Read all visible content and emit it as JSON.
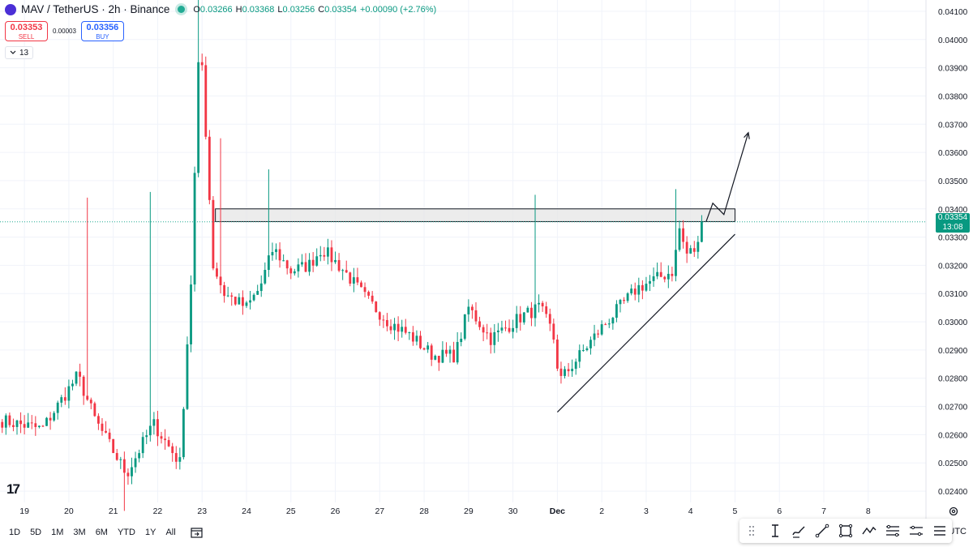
{
  "header": {
    "symbol": "MAV / TetherUS · 2h · Binance",
    "ohlc": [
      {
        "k": "O",
        "v": "0.03266"
      },
      {
        "k": "H",
        "v": "0.03368"
      },
      {
        "k": "L",
        "v": "0.03256"
      },
      {
        "k": "C",
        "v": "0.03354"
      },
      {
        "k": "",
        "v": "+0.00090 (+2.76%)"
      }
    ]
  },
  "trade": {
    "sell_price": "0.03353",
    "sell_label": "SELL",
    "spread": "0.00003",
    "buy_price": "0.03356",
    "buy_label": "BUY"
  },
  "indicators": {
    "count": "13"
  },
  "price_tag": {
    "price": "0.03354",
    "countdown": "13:08"
  },
  "colors": {
    "up": "#089981",
    "down": "#f23645",
    "live_line": "#22ab94",
    "zone_fill": "#e6e6e6"
  },
  "time_axis": [
    {
      "label": "19",
      "day": 19
    },
    {
      "label": "20",
      "day": 20
    },
    {
      "label": "21",
      "day": 21
    },
    {
      "label": "22",
      "day": 22
    },
    {
      "label": "23",
      "day": 23
    },
    {
      "label": "24",
      "day": 24
    },
    {
      "label": "25",
      "day": 25
    },
    {
      "label": "26",
      "day": 26
    },
    {
      "label": "27",
      "day": 27
    },
    {
      "label": "28",
      "day": 28
    },
    {
      "label": "29",
      "day": 29
    },
    {
      "label": "30",
      "day": 30
    },
    {
      "label": "Dec",
      "day": 31
    },
    {
      "label": "2",
      "day": 32
    },
    {
      "label": "3",
      "day": 33
    },
    {
      "label": "4",
      "day": 34
    },
    {
      "label": "5",
      "day": 35
    },
    {
      "label": "6",
      "day": 36
    },
    {
      "label": "7",
      "day": 37
    },
    {
      "label": "8",
      "day": 38
    }
  ],
  "timeframes": [
    "1D",
    "5D",
    "1M",
    "3M",
    "6M",
    "YTD",
    "1Y",
    "All"
  ],
  "bottom": {
    "timezone": "UTC"
  },
  "drawing_tools": [
    "move-handle-icon",
    "text-cursor-icon",
    "brush-icon",
    "trend-line-icon",
    "rectangle-icon",
    "path-icon",
    "fib-retracement-icon",
    "measure-icon",
    "menu-icon"
  ],
  "chart_data": {
    "type": "candlestick",
    "symbol": "MAV / TetherUS",
    "interval": "2h",
    "exchange": "Binance",
    "y_ticks": [
      0.041,
      0.04,
      0.039,
      0.038,
      0.037,
      0.036,
      0.035,
      0.034,
      0.033,
      0.032,
      0.031,
      0.03,
      0.029,
      0.028,
      0.027,
      0.026,
      0.025,
      0.024
    ],
    "y_tick_labels": [
      "0.04100",
      "0.04000",
      "0.03900",
      "0.03800",
      "0.03700",
      "0.03600",
      "0.03500",
      "0.03400",
      "0.03300",
      "0.03200",
      "0.03100",
      "0.03000",
      "0.02900",
      "0.02800",
      "0.02700",
      "0.02600",
      "0.02500",
      "0.02400"
    ],
    "ylim": [
      0.0236,
      0.0414
    ],
    "xlim": [
      18.45,
      39.3
    ],
    "current_price": 0.03354,
    "key_points": [
      {
        "day": 18.5,
        "close": 0.0265
      },
      {
        "day": 19.4,
        "close": 0.0262
      },
      {
        "day": 20.2,
        "close": 0.0281
      },
      {
        "day": 20.6,
        "close": 0.0265
      },
      {
        "day": 21.3,
        "close": 0.0246
      },
      {
        "day": 21.9,
        "close": 0.0264
      },
      {
        "day": 22.5,
        "close": 0.025
      },
      {
        "day": 22.75,
        "close": 0.0314
      },
      {
        "day": 22.95,
        "close": 0.0405
      },
      {
        "day": 23.25,
        "close": 0.032
      },
      {
        "day": 23.5,
        "close": 0.031
      },
      {
        "day": 24.0,
        "close": 0.0305
      },
      {
        "day": 24.3,
        "close": 0.0312
      },
      {
        "day": 24.6,
        "close": 0.0326
      },
      {
        "day": 25.0,
        "close": 0.0318
      },
      {
        "day": 25.4,
        "close": 0.032
      },
      {
        "day": 25.7,
        "close": 0.0326
      },
      {
        "day": 26.2,
        "close": 0.0318
      },
      {
        "day": 26.7,
        "close": 0.0308
      },
      {
        "day": 27.2,
        "close": 0.03
      },
      {
        "day": 27.7,
        "close": 0.0295
      },
      {
        "day": 28.2,
        "close": 0.0288
      },
      {
        "day": 28.7,
        "close": 0.0288
      },
      {
        "day": 29.0,
        "close": 0.0305
      },
      {
        "day": 29.5,
        "close": 0.0294
      },
      {
        "day": 30.2,
        "close": 0.0302
      },
      {
        "day": 30.6,
        "close": 0.0305
      },
      {
        "day": 30.9,
        "close": 0.0296
      },
      {
        "day": 31.05,
        "close": 0.0279
      },
      {
        "day": 31.5,
        "close": 0.0288
      },
      {
        "day": 32.0,
        "close": 0.0298
      },
      {
        "day": 32.4,
        "close": 0.0305
      },
      {
        "day": 32.8,
        "close": 0.0312
      },
      {
        "day": 33.2,
        "close": 0.0315
      },
      {
        "day": 33.6,
        "close": 0.0318
      },
      {
        "day": 33.75,
        "close": 0.0333
      },
      {
        "day": 33.9,
        "close": 0.0324
      },
      {
        "day": 34.15,
        "close": 0.0326
      },
      {
        "day": 34.3,
        "close": 0.03354
      }
    ],
    "spikes": [
      {
        "day": 20.4,
        "high": 0.0344
      },
      {
        "day": 21.25,
        "low": 0.0233
      },
      {
        "day": 21.85,
        "high": 0.0346
      },
      {
        "day": 22.9,
        "high": 0.0416
      },
      {
        "day": 23.4,
        "high": 0.0365
      },
      {
        "day": 24.5,
        "high": 0.0354
      },
      {
        "day": 30.5,
        "high": 0.0345
      },
      {
        "day": 33.7,
        "high": 0.0347
      }
    ],
    "annotations": {
      "resistance_zone": {
        "from_day": 23.3,
        "to_day": 35.0,
        "low": 0.03355,
        "high": 0.034
      },
      "ascending_trendline": [
        {
          "day": 31.0,
          "price": 0.0268
        },
        {
          "day": 35.0,
          "price": 0.0331
        }
      ],
      "projection_path": [
        {
          "day": 34.35,
          "price": 0.03355
        },
        {
          "day": 34.5,
          "price": 0.0342
        },
        {
          "day": 34.75,
          "price": 0.0338
        },
        {
          "day": 35.3,
          "price": 0.0367
        }
      ]
    }
  }
}
